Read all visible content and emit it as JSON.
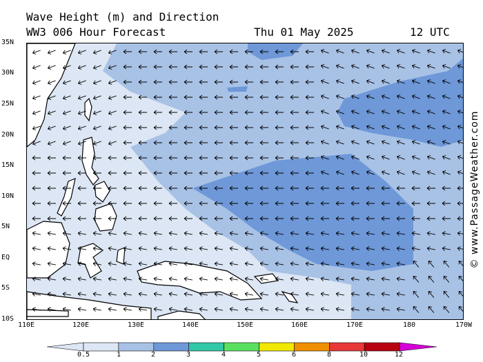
{
  "header": {
    "title": "Wave Height (m) and Direction",
    "model": "WW3 006 Hour Forecast",
    "date": "Thu 01 May 2025",
    "time": "12 UTC"
  },
  "credit": "© www.PassageWeather.com",
  "axes": {
    "lat_labels": [
      "35N",
      "30N",
      "25N",
      "20N",
      "15N",
      "10N",
      "5N",
      "EQ",
      "5S",
      "10S"
    ],
    "lon_labels": [
      "110E",
      "120E",
      "130E",
      "140E",
      "150E",
      "160E",
      "170E",
      "180",
      "170W"
    ]
  },
  "legend": {
    "ticks": [
      "0.5",
      "1",
      "2",
      "3",
      "4",
      "5",
      "6",
      "8",
      "10",
      "12"
    ],
    "colors": [
      "#dce6f4",
      "#a8c2e6",
      "#6e98d8",
      "#30c8a8",
      "#5ae060",
      "#f0e800",
      "#f09000",
      "#e83838",
      "#b80010",
      "#d800d8"
    ]
  },
  "map_colors": {
    "land": "#ffffff",
    "sea_low": "#dce6f4",
    "sea_mid": "#a8c2e6",
    "sea_high": "#6e98d8"
  }
}
